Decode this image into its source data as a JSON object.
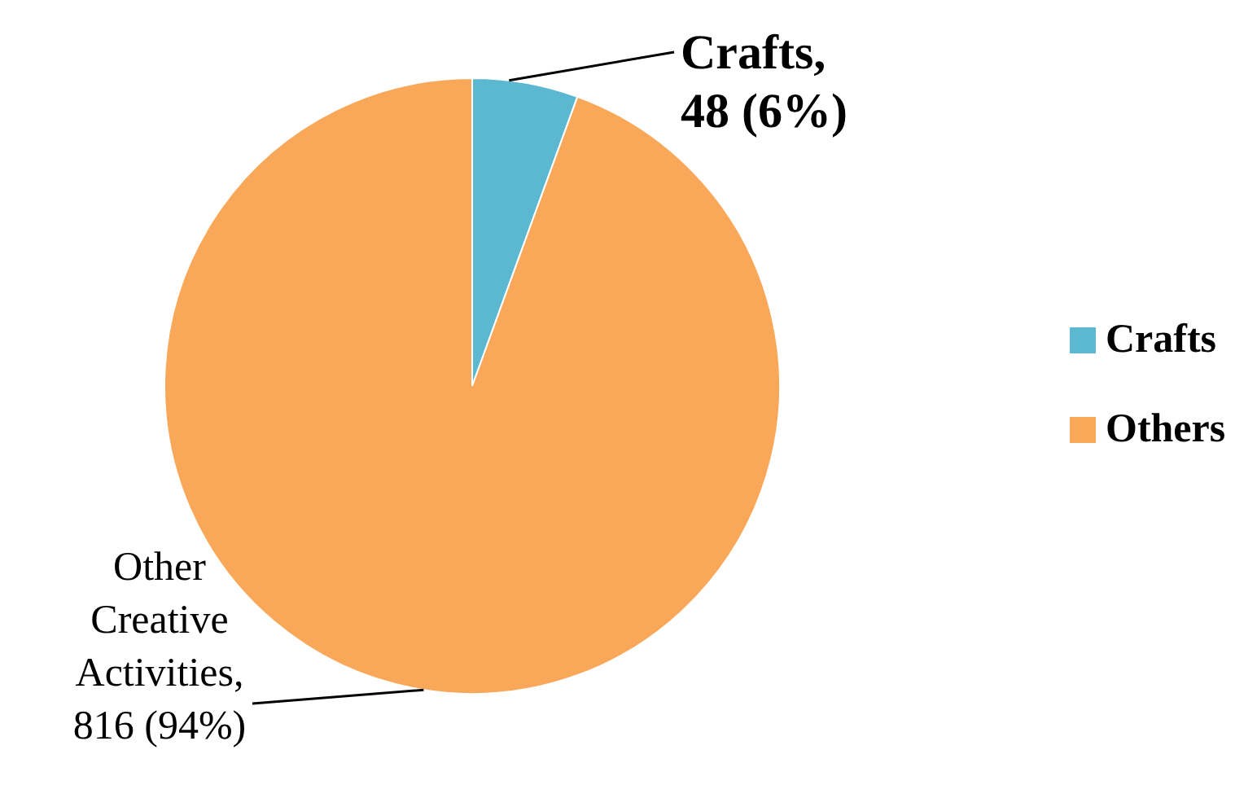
{
  "chart_data": {
    "type": "pie",
    "categories": [
      "Crafts",
      "Others"
    ],
    "values": [
      48,
      816
    ],
    "colors": [
      "#5bb8d0",
      "#f9a85a"
    ],
    "value_labels": [
      "Crafts,\n48 (6%)",
      "Other\nCreative\nActivities,\n816 (94%)"
    ],
    "legend": "right"
  }
}
